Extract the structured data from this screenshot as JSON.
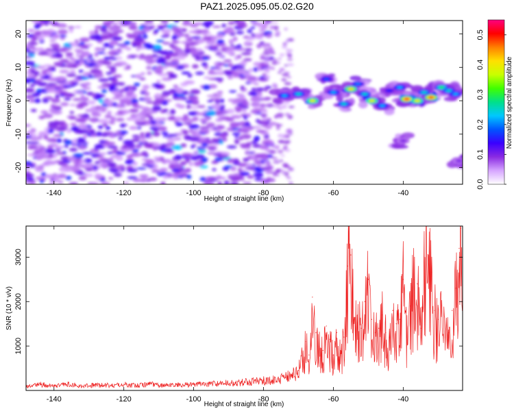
{
  "title": "PAZ1.2025.095.05.02.G20",
  "chart_data": [
    {
      "type": "heatmap",
      "xlabel": "Height of straight line (km)",
      "ylabel": "Frequency (Hz)",
      "xlim": [
        -148,
        -23
      ],
      "ylim": [
        -25,
        24
      ],
      "x_ticks": [
        -140,
        -120,
        -100,
        -80,
        -60,
        -40
      ],
      "y_ticks": [
        -20,
        -10,
        0,
        10,
        20
      ],
      "colorbar": {
        "label": "Normalized spectral amplitude",
        "range": [
          0.0,
          0.55
        ],
        "ticks": [
          0.0,
          0.1,
          0.2,
          0.3,
          0.4,
          0.5
        ],
        "colors": [
          "#ffffff",
          "#d6a5ff",
          "#8a2be2",
          "#3a00ff",
          "#0055ff",
          "#00c8ff",
          "#00e08a",
          "#40ff00",
          "#c8ff00",
          "#ffe000",
          "#ff8000",
          "#ff0000",
          "#ff0080"
        ]
      },
      "background_noise_region": {
        "x_range": [
          -148,
          -78
        ],
        "y_range": [
          -25,
          24
        ],
        "typical_amplitude": 0.08
      },
      "signal_band": [
        {
          "x": -74,
          "y": 1.5,
          "amp": 0.22
        },
        {
          "x": -70,
          "y": 2.0,
          "amp": 0.25
        },
        {
          "x": -66,
          "y": 0.0,
          "amp": 0.4
        },
        {
          "x": -62,
          "y": 6.5,
          "amp": 0.18
        },
        {
          "x": -60,
          "y": 2.5,
          "amp": 0.22
        },
        {
          "x": -57,
          "y": -1.0,
          "amp": 0.25
        },
        {
          "x": -55,
          "y": 3.5,
          "amp": 0.42
        },
        {
          "x": -53,
          "y": 5.0,
          "amp": 0.2
        },
        {
          "x": -51,
          "y": 2.0,
          "amp": 0.25
        },
        {
          "x": -49,
          "y": 0.0,
          "amp": 0.4
        },
        {
          "x": -46,
          "y": -1.5,
          "amp": 0.22
        },
        {
          "x": -44,
          "y": 3.0,
          "amp": 0.15
        },
        {
          "x": -41,
          "y": 4.0,
          "amp": 0.22
        },
        {
          "x": -39,
          "y": 0.5,
          "amp": 0.52
        },
        {
          "x": -36,
          "y": 0.0,
          "amp": 0.4
        },
        {
          "x": -34,
          "y": 2.5,
          "amp": 0.25
        },
        {
          "x": -32,
          "y": 1.0,
          "amp": 0.5
        },
        {
          "x": -29,
          "y": 4.0,
          "amp": 0.3
        },
        {
          "x": -27,
          "y": 3.0,
          "amp": 0.25
        },
        {
          "x": -25,
          "y": 2.0,
          "amp": 0.22
        },
        {
          "x": -40,
          "y": -12.0,
          "amp": 0.1
        },
        {
          "x": -24,
          "y": -18.0,
          "amp": 0.1
        }
      ]
    },
    {
      "type": "line",
      "xlabel": "Height of straight line (km)",
      "ylabel": "SNR (10 * v/v)",
      "xlim": [
        -148,
        -23
      ],
      "ylim": [
        0,
        3700
      ],
      "x_ticks": [
        -140,
        -120,
        -100,
        -80,
        -60,
        -40
      ],
      "y_ticks": [
        1000,
        2000,
        3000
      ],
      "series": [
        {
          "color": "#ee2222",
          "x": [
            -148,
            -144,
            -140,
            -136,
            -132,
            -128,
            -124,
            -120,
            -116,
            -112,
            -108,
            -104,
            -100,
            -96,
            -92,
            -88,
            -84,
            -80,
            -76,
            -73,
            -70,
            -68,
            -67,
            -66,
            -65,
            -64,
            -63,
            -62,
            -61,
            -60,
            -59,
            -58,
            -57,
            -56,
            -55,
            -54,
            -53,
            -52,
            -51,
            -50,
            -49,
            -48,
            -47,
            -46,
            -45,
            -44,
            -43,
            -42,
            -41,
            -40,
            -39,
            -38,
            -37,
            -36,
            -35,
            -34,
            -33,
            -32,
            -31,
            -30,
            -29,
            -28,
            -27,
            -26,
            -25,
            -24,
            -23.5,
            -23
          ],
          "y": [
            90,
            140,
            110,
            150,
            100,
            130,
            120,
            140,
            110,
            160,
            120,
            130,
            140,
            150,
            170,
            180,
            200,
            230,
            260,
            320,
            450,
            1100,
            800,
            2100,
            1300,
            1000,
            900,
            1450,
            1150,
            800,
            1300,
            900,
            1200,
            2800,
            3050,
            1600,
            1700,
            1400,
            2000,
            2500,
            1600,
            1300,
            1400,
            1700,
            1300,
            1200,
            1800,
            1500,
            1600,
            2500,
            1200,
            1900,
            2500,
            2400,
            1400,
            3000,
            3700,
            2500,
            1800,
            1600,
            1900,
            1200,
            1300,
            1800,
            2300,
            3200,
            3650,
            1800
          ]
        }
      ]
    }
  ]
}
